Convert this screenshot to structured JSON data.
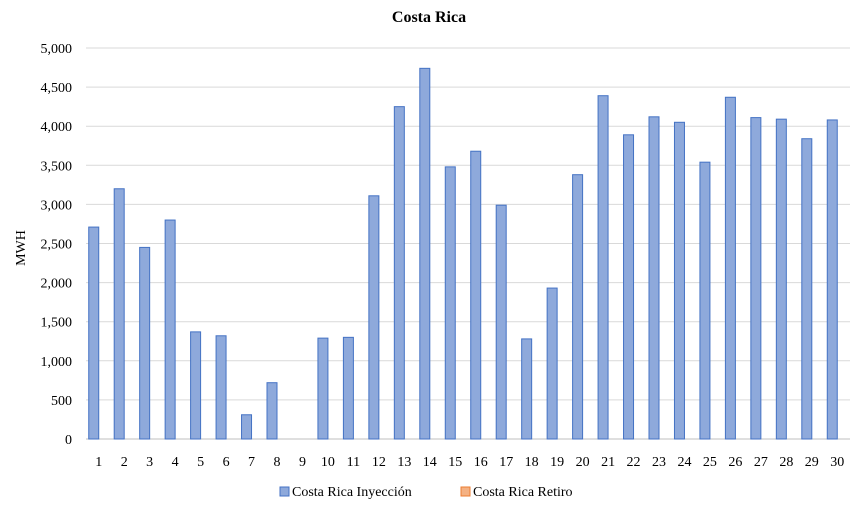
{
  "chart_data": {
    "type": "bar",
    "title": "Costa  Rica",
    "xlabel": "",
    "ylabel": "MWH",
    "ylim": [
      0,
      5000
    ],
    "yticks": [
      "0",
      "500",
      "1,000",
      "1,500",
      "2,000",
      "2,500",
      "3,000",
      "3,500",
      "4,000",
      "4,500",
      "5,000"
    ],
    "grid": true,
    "legend_position": "bottom",
    "categories": [
      "1",
      "2",
      "3",
      "4",
      "5",
      "6",
      "7",
      "8",
      "9",
      "10",
      "11",
      "12",
      "13",
      "14",
      "15",
      "16",
      "17",
      "18",
      "19",
      "20",
      "21",
      "22",
      "23",
      "24",
      "25",
      "26",
      "27",
      "28",
      "29",
      "30"
    ],
    "series": [
      {
        "name": "Costa Rica Inyección",
        "color": "#8EA9DB",
        "edge_color": "#4472C4",
        "values": [
          2710,
          3200,
          2450,
          2800,
          1370,
          1320,
          310,
          720,
          0,
          1290,
          1300,
          3110,
          4250,
          4740,
          3480,
          3680,
          2990,
          1280,
          1930,
          3380,
          4390,
          3890,
          4120,
          4050,
          3540,
          4370,
          4110,
          4090,
          3840,
          4080
        ]
      },
      {
        "name": "Costa Rica Retiro",
        "color": "#F4B183",
        "edge_color": "#ED7D31",
        "values": [
          0,
          0,
          0,
          0,
          0,
          0,
          0,
          0,
          0,
          0,
          0,
          0,
          0,
          0,
          0,
          0,
          0,
          0,
          0,
          0,
          0,
          0,
          0,
          0,
          0,
          0,
          0,
          0,
          0,
          0
        ]
      }
    ]
  }
}
